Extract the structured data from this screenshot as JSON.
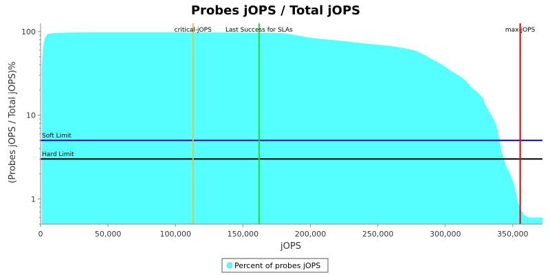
{
  "chart_data": {
    "type": "area",
    "title": "Probes jOPS / Total jOPS",
    "xlabel": "jOPS",
    "ylabel": "(Probes jOPS / Total jOPS)%",
    "xlim": [
      0,
      372000
    ],
    "ylim": [
      0.5,
      125
    ],
    "y_scale": "log",
    "x_ticks": [
      0,
      50000,
      100000,
      150000,
      200000,
      250000,
      300000,
      350000
    ],
    "x_tick_labels": [
      "0",
      "50,000",
      "100,000",
      "150,000",
      "200,000",
      "250,000",
      "300,000",
      "350,000"
    ],
    "y_ticks": [
      1,
      10,
      100
    ],
    "y_tick_labels": [
      "1",
      "10",
      "100"
    ],
    "grid": false,
    "legend_position": "bottom",
    "series": [
      {
        "name": "Percent of probes jOPS",
        "color": "#55ffff",
        "x": [
          1000,
          2000,
          3000,
          5000,
          10000,
          20000,
          40000,
          60000,
          100000,
          150000,
          180000,
          190000,
          200000,
          220000,
          240000,
          260000,
          270000,
          278000,
          285000,
          290000,
          300000,
          305000,
          310000,
          315000,
          320000,
          325000,
          328000,
          330000,
          335000,
          338000,
          340000,
          342000,
          345000,
          348000,
          351000,
          354000,
          356000,
          358000,
          362000,
          372000
        ],
        "values": [
          40,
          65,
          82,
          93,
          96,
          97,
          97.5,
          97.5,
          97.5,
          97,
          96,
          90,
          84,
          78,
          72,
          67,
          63,
          59,
          52,
          47,
          38,
          33,
          30,
          26,
          21,
          18,
          16,
          13,
          9.5,
          7.5,
          5.2,
          3.6,
          2.5,
          2,
          1.5,
          0.9,
          0.75,
          0.65,
          0.6,
          0.6
        ]
      }
    ],
    "vertical_lines": [
      {
        "label": "critical-jOPS",
        "x": 113000,
        "color": "#e8c040"
      },
      {
        "label": "Last Success for SLAs",
        "x": 162000,
        "color": "#22dd22"
      },
      {
        "label": "max-jOPS",
        "x": 355500,
        "color": "#dd0000"
      }
    ],
    "horizontal_lines": [
      {
        "label": "Soft Limit",
        "y": 5,
        "color": "#0000cc"
      },
      {
        "label": "Hard Limit",
        "y": 3,
        "color": "#000000"
      }
    ]
  }
}
